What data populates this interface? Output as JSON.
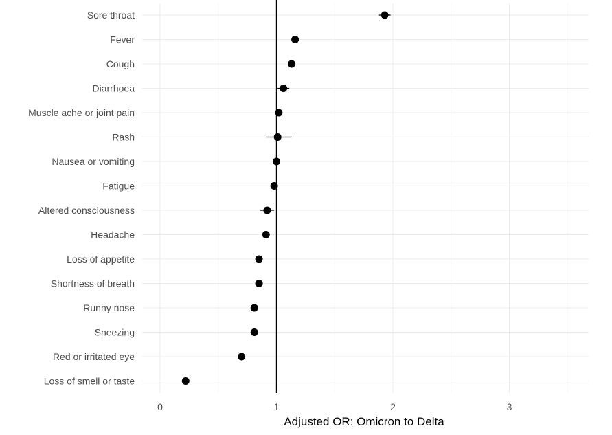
{
  "chart_data": {
    "type": "scatter",
    "xlabel": "Adjusted OR: Omicron to Delta",
    "ylabel": "",
    "xlim": [
      -0.05,
      3.7
    ],
    "x_ticks": [
      0,
      1,
      2,
      3
    ],
    "x_tick_labels": [
      "0",
      "1",
      "2",
      "3"
    ],
    "reference_line_x": 1,
    "grid": true,
    "legend": "none",
    "point_color": "#000000",
    "grid_color": "#ebebeb",
    "categories": [
      "Sore throat",
      "Fever",
      "Cough",
      "Diarrhoea",
      "Muscle ache or joint pain",
      "Rash",
      "Nausea or vomiting",
      "Fatigue",
      "Altered consciousness",
      "Headache",
      "Loss of appetite",
      "Shortness of breath",
      "Runny nose",
      "Sneezing",
      "Red or irritated eye",
      "Loss of smell or taste"
    ],
    "points": [
      {
        "label": "Sore throat",
        "or": 1.93,
        "lower": 1.88,
        "upper": 1.98
      },
      {
        "label": "Fever",
        "or": 1.16,
        "lower": 1.14,
        "upper": 1.18
      },
      {
        "label": "Cough",
        "or": 1.13,
        "lower": 1.11,
        "upper": 1.15
      },
      {
        "label": "Diarrhoea",
        "or": 1.06,
        "lower": 1.01,
        "upper": 1.11
      },
      {
        "label": "Muscle ache or joint pain",
        "or": 1.02,
        "lower": 1.0,
        "upper": 1.04
      },
      {
        "label": "Rash",
        "or": 1.01,
        "lower": 0.91,
        "upper": 1.13
      },
      {
        "label": "Nausea or vomiting",
        "or": 1.0,
        "lower": 0.98,
        "upper": 1.03
      },
      {
        "label": "Fatigue",
        "or": 0.98,
        "lower": 0.97,
        "upper": 0.99
      },
      {
        "label": "Altered consciousness",
        "or": 0.92,
        "lower": 0.86,
        "upper": 0.98
      },
      {
        "label": "Headache",
        "or": 0.91,
        "lower": 0.9,
        "upper": 0.92
      },
      {
        "label": "Loss of appetite",
        "or": 0.85,
        "lower": 0.83,
        "upper": 0.87
      },
      {
        "label": "Shortness of breath",
        "or": 0.85,
        "lower": 0.83,
        "upper": 0.87
      },
      {
        "label": "Runny nose",
        "or": 0.81,
        "lower": 0.8,
        "upper": 0.82
      },
      {
        "label": "Sneezing",
        "or": 0.81,
        "lower": 0.8,
        "upper": 0.82
      },
      {
        "label": "Red or irritated eye",
        "or": 0.7,
        "lower": 0.68,
        "upper": 0.72
      },
      {
        "label": "Loss of smell or taste",
        "or": 0.22,
        "lower": 0.21,
        "upper": 0.23
      }
    ]
  }
}
